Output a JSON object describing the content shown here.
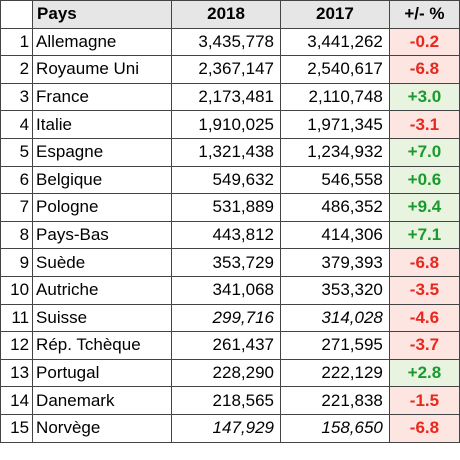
{
  "header": {
    "rank": "",
    "name": "Pays",
    "y2018": "2018",
    "y2017": "2017",
    "pct": "+/- %"
  },
  "colors": {
    "negative_bg": "#fde5e1",
    "negative_text": "#e8271d",
    "positive_bg": "#e8f4df",
    "positive_text": "#1a9a2e",
    "header_bg": "#e6e6e6"
  },
  "rows": [
    {
      "rank": "1",
      "name": "Allemagne",
      "y2018": "3,435,778",
      "y2017": "3,441,262",
      "pct": "-0.2",
      "sign": "neg",
      "italic": false
    },
    {
      "rank": "2",
      "name": "Royaume Uni",
      "y2018": "2,367,147",
      "y2017": "2,540,617",
      "pct": "-6.8",
      "sign": "neg",
      "italic": false
    },
    {
      "rank": "3",
      "name": "France",
      "y2018": "2,173,481",
      "y2017": "2,110,748",
      "pct": "+3.0",
      "sign": "pos",
      "italic": false
    },
    {
      "rank": "4",
      "name": "Italie",
      "y2018": "1,910,025",
      "y2017": "1,971,345",
      "pct": "-3.1",
      "sign": "neg",
      "italic": false
    },
    {
      "rank": "5",
      "name": "Espagne",
      "y2018": "1,321,438",
      "y2017": "1,234,932",
      "pct": "+7.0",
      "sign": "pos",
      "italic": false
    },
    {
      "rank": "6",
      "name": "Belgique",
      "y2018": "549,632",
      "y2017": "546,558",
      "pct": "+0.6",
      "sign": "pos",
      "italic": false
    },
    {
      "rank": "7",
      "name": "Pologne",
      "y2018": "531,889",
      "y2017": "486,352",
      "pct": "+9.4",
      "sign": "pos",
      "italic": false
    },
    {
      "rank": "8",
      "name": "Pays-Bas",
      "y2018": "443,812",
      "y2017": "414,306",
      "pct": "+7.1",
      "sign": "pos",
      "italic": false
    },
    {
      "rank": "9",
      "name": "Suède",
      "y2018": "353,729",
      "y2017": "379,393",
      "pct": "-6.8",
      "sign": "neg",
      "italic": false
    },
    {
      "rank": "10",
      "name": "Autriche",
      "y2018": "341,068",
      "y2017": "353,320",
      "pct": "-3.5",
      "sign": "neg",
      "italic": false
    },
    {
      "rank": "11",
      "name": "Suisse",
      "y2018": "299,716",
      "y2017": "314,028",
      "pct": "-4.6",
      "sign": "neg",
      "italic": true
    },
    {
      "rank": "12",
      "name": "Rép. Tchèque",
      "y2018": "261,437",
      "y2017": "271,595",
      "pct": "-3.7",
      "sign": "neg",
      "italic": false
    },
    {
      "rank": "13",
      "name": "Portugal",
      "y2018": "228,290",
      "y2017": "222,129",
      "pct": "+2.8",
      "sign": "pos",
      "italic": false
    },
    {
      "rank": "14",
      "name": "Danemark",
      "y2018": "218,565",
      "y2017": "221,838",
      "pct": "-1.5",
      "sign": "neg",
      "italic": false
    },
    {
      "rank": "15",
      "name": "Norvège",
      "y2018": "147,929",
      "y2017": "158,650",
      "pct": "-6.8",
      "sign": "neg",
      "italic": true
    }
  ]
}
